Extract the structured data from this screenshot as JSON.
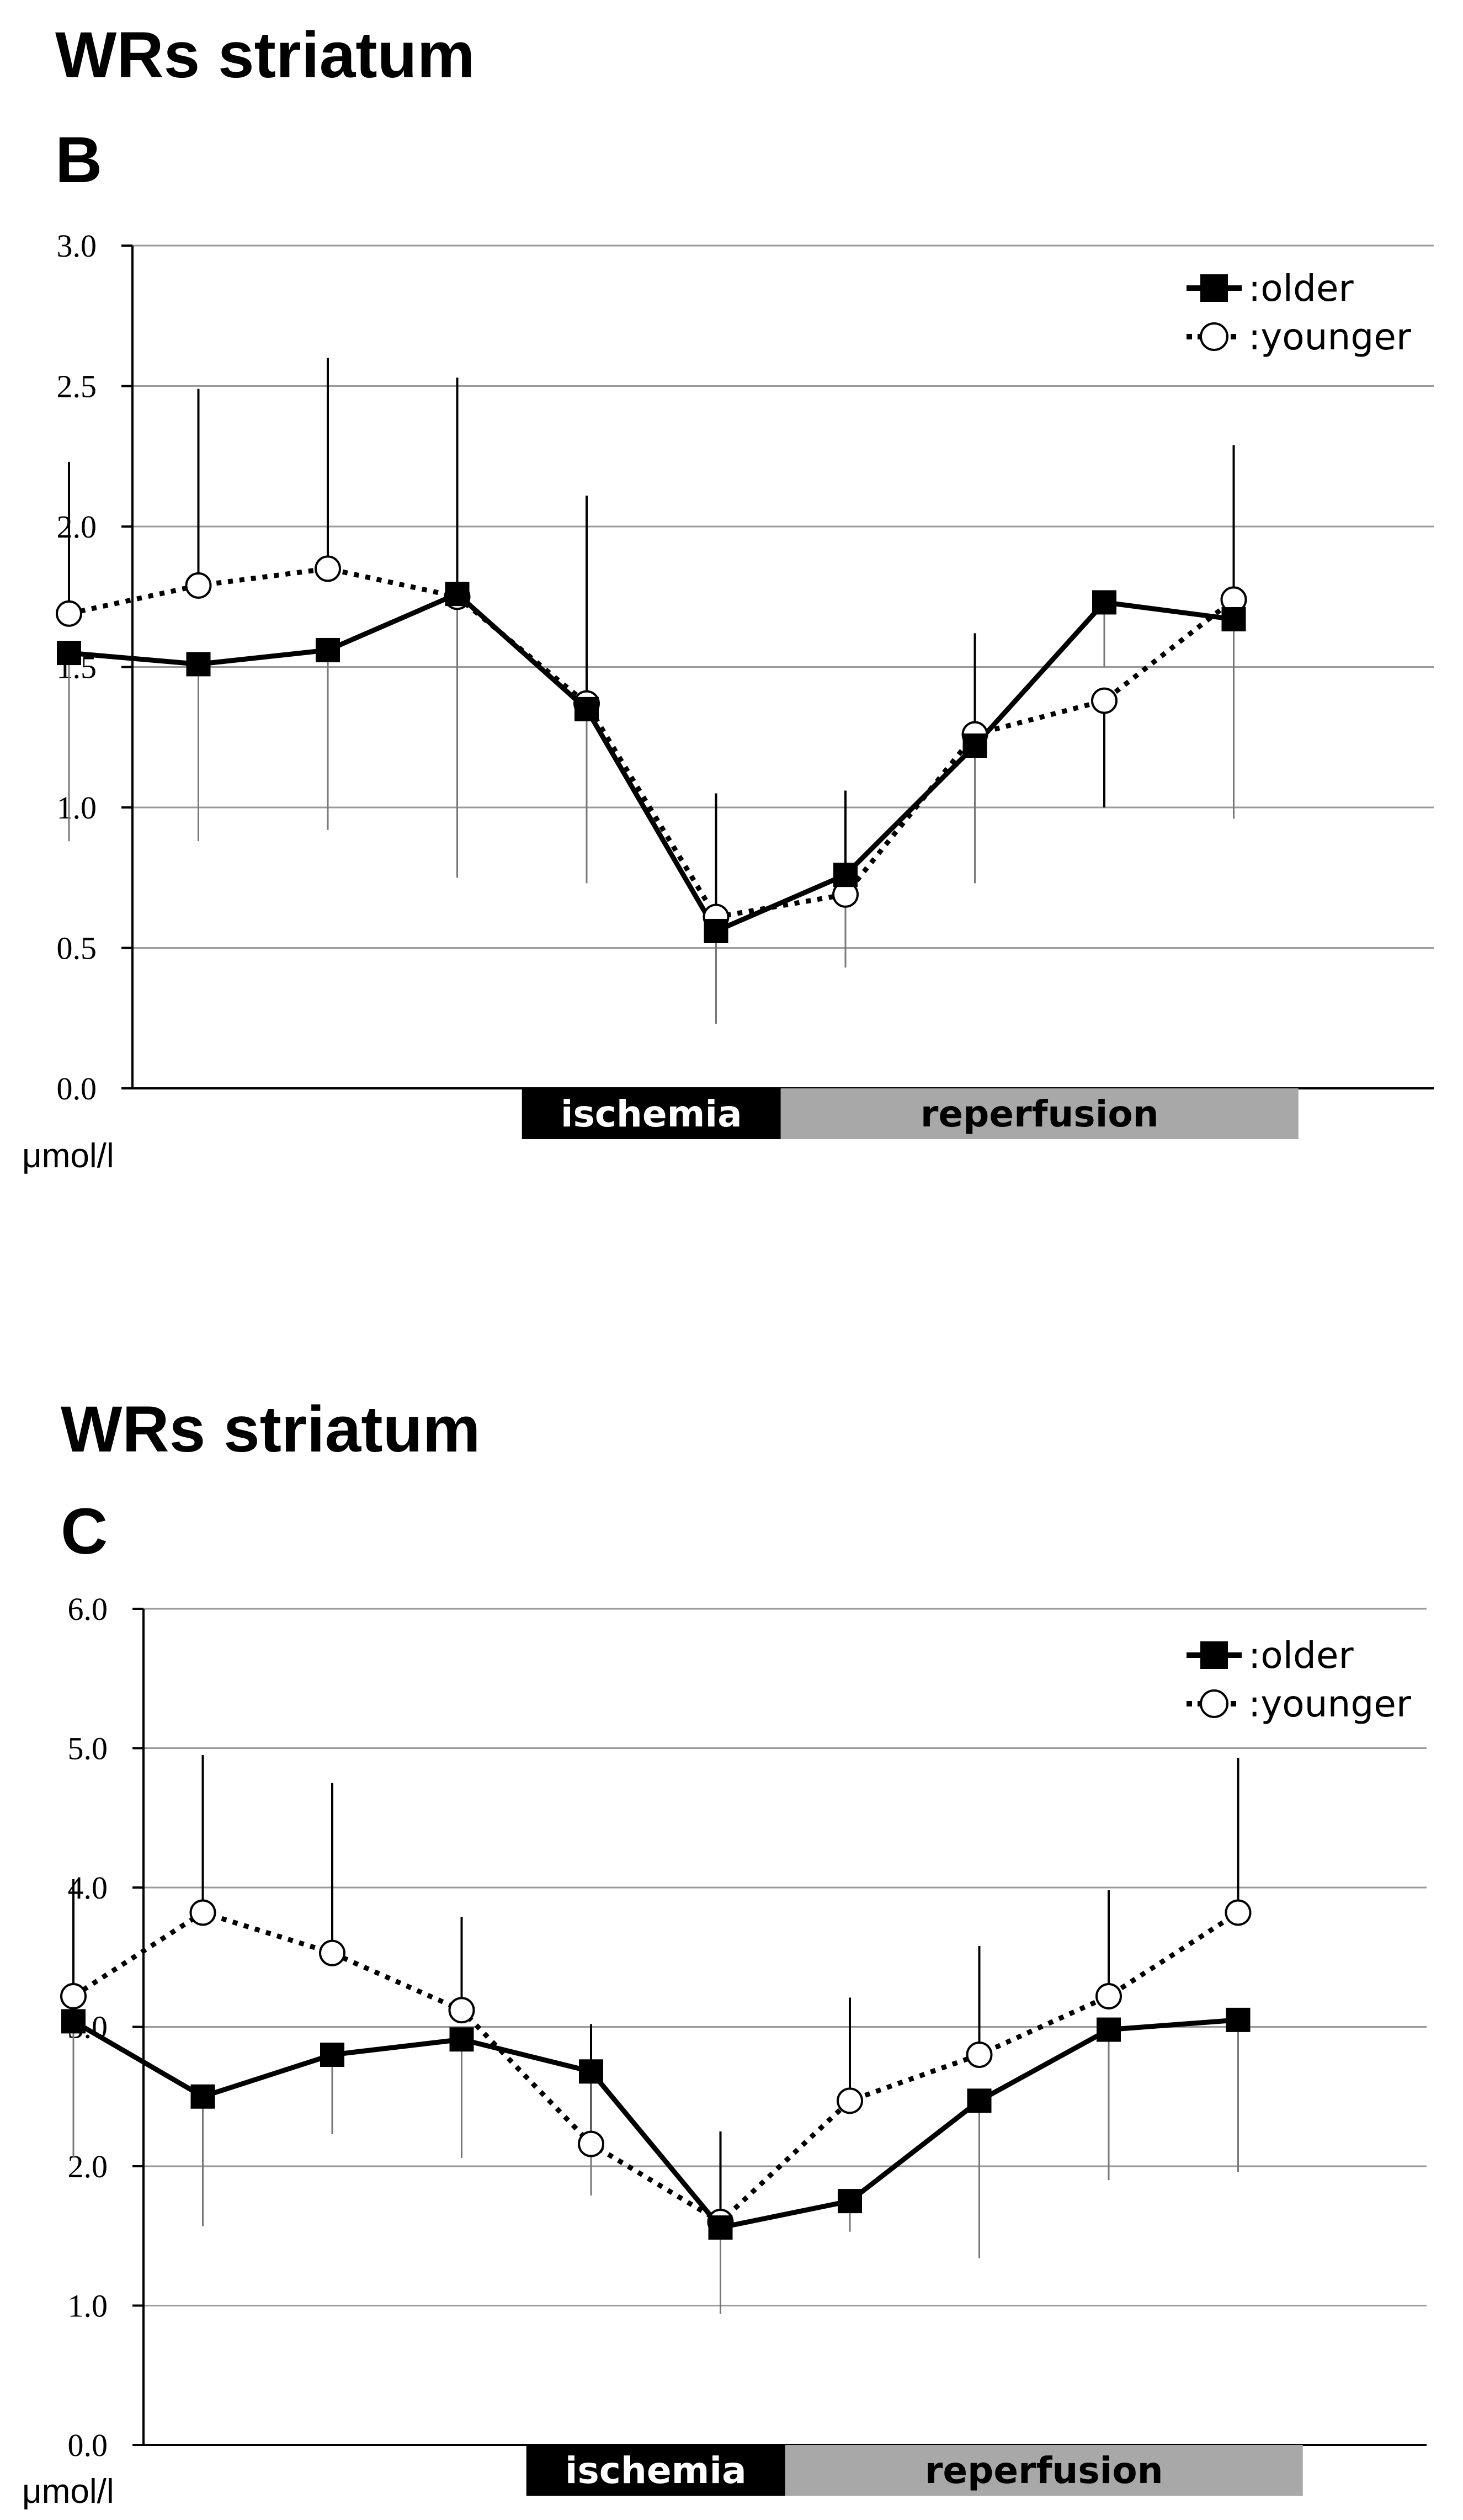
{
  "chart_data": [
    {
      "type": "line",
      "title": "WRs striatum",
      "panel": "B",
      "ylabel": "μmol/l",
      "ylim": [
        0,
        3
      ],
      "yticks": [
        "0.0",
        "0.5",
        "1.0",
        "1.5",
        "2.0",
        "2.5",
        "3.0"
      ],
      "grid": true,
      "legend_position": "top-right",
      "periods": [
        {
          "label": "ischemia",
          "start": 4.5,
          "end": 6.5,
          "color": "#000000",
          "text_color": "#ffffff"
        },
        {
          "label": "reperfusion",
          "start": 6.5,
          "end": 10.5,
          "color": "#a8a8a8",
          "text_color": "#000000"
        }
      ],
      "x": [
        1,
        2,
        3,
        4,
        5,
        6,
        7,
        8,
        9,
        10
      ],
      "series": [
        {
          "name": ":older",
          "marker": "filled-square",
          "line": "solid",
          "values": [
            1.55,
            1.51,
            1.56,
            1.76,
            1.35,
            0.56,
            0.76,
            1.22,
            1.73,
            1.67
          ],
          "err_lower": [
            0.88,
            0.88,
            0.92,
            0.75,
            0.73,
            0.23,
            0.43,
            0.73,
            1.5,
            0.96
          ]
        },
        {
          "name": ":younger",
          "marker": "open-circle",
          "line": "dotted",
          "values": [
            1.69,
            1.79,
            1.85,
            1.75,
            1.37,
            0.61,
            0.69,
            1.26,
            1.38,
            1.74
          ],
          "err_upper": [
            2.23,
            2.49,
            2.6,
            2.53,
            2.11,
            1.05,
            1.06,
            1.62,
            1.0,
            2.29
          ]
        }
      ]
    },
    {
      "type": "line",
      "title": "WRs striatum",
      "panel": "C",
      "ylabel": "μmol/l",
      "ylim": [
        0,
        6
      ],
      "yticks": [
        "0.0",
        "1.0",
        "2.0",
        "3.0",
        "4.0",
        "5.0",
        "6.0"
      ],
      "grid": true,
      "legend_position": "top-right",
      "periods": [
        {
          "label": "ischemia",
          "start": 4.5,
          "end": 6.5,
          "color": "#000000",
          "text_color": "#ffffff"
        },
        {
          "label": "reperfusion",
          "start": 6.5,
          "end": 10.5,
          "color": "#a8a8a8",
          "text_color": "#000000"
        }
      ],
      "x": [
        1,
        2,
        3,
        4,
        5,
        6,
        7,
        8,
        9,
        10
      ],
      "series": [
        {
          "name": ":older",
          "marker": "filled-square",
          "line": "solid",
          "values": [
            3.04,
            2.5,
            2.8,
            2.91,
            2.68,
            1.56,
            1.75,
            2.47,
            2.98,
            3.05
          ],
          "err_lower": [
            2.06,
            1.57,
            2.23,
            2.06,
            1.79,
            0.94,
            1.53,
            1.34,
            1.9,
            1.96
          ]
        },
        {
          "name": ":younger",
          "marker": "open-circle",
          "line": "dotted",
          "values": [
            3.22,
            3.82,
            3.53,
            3.12,
            2.16,
            1.6,
            2.47,
            2.8,
            3.22,
            3.82
          ],
          "err_upper": [
            4.06,
            4.95,
            4.75,
            3.79,
            3.02,
            2.25,
            3.21,
            3.58,
            3.98,
            4.93
          ]
        }
      ]
    }
  ]
}
